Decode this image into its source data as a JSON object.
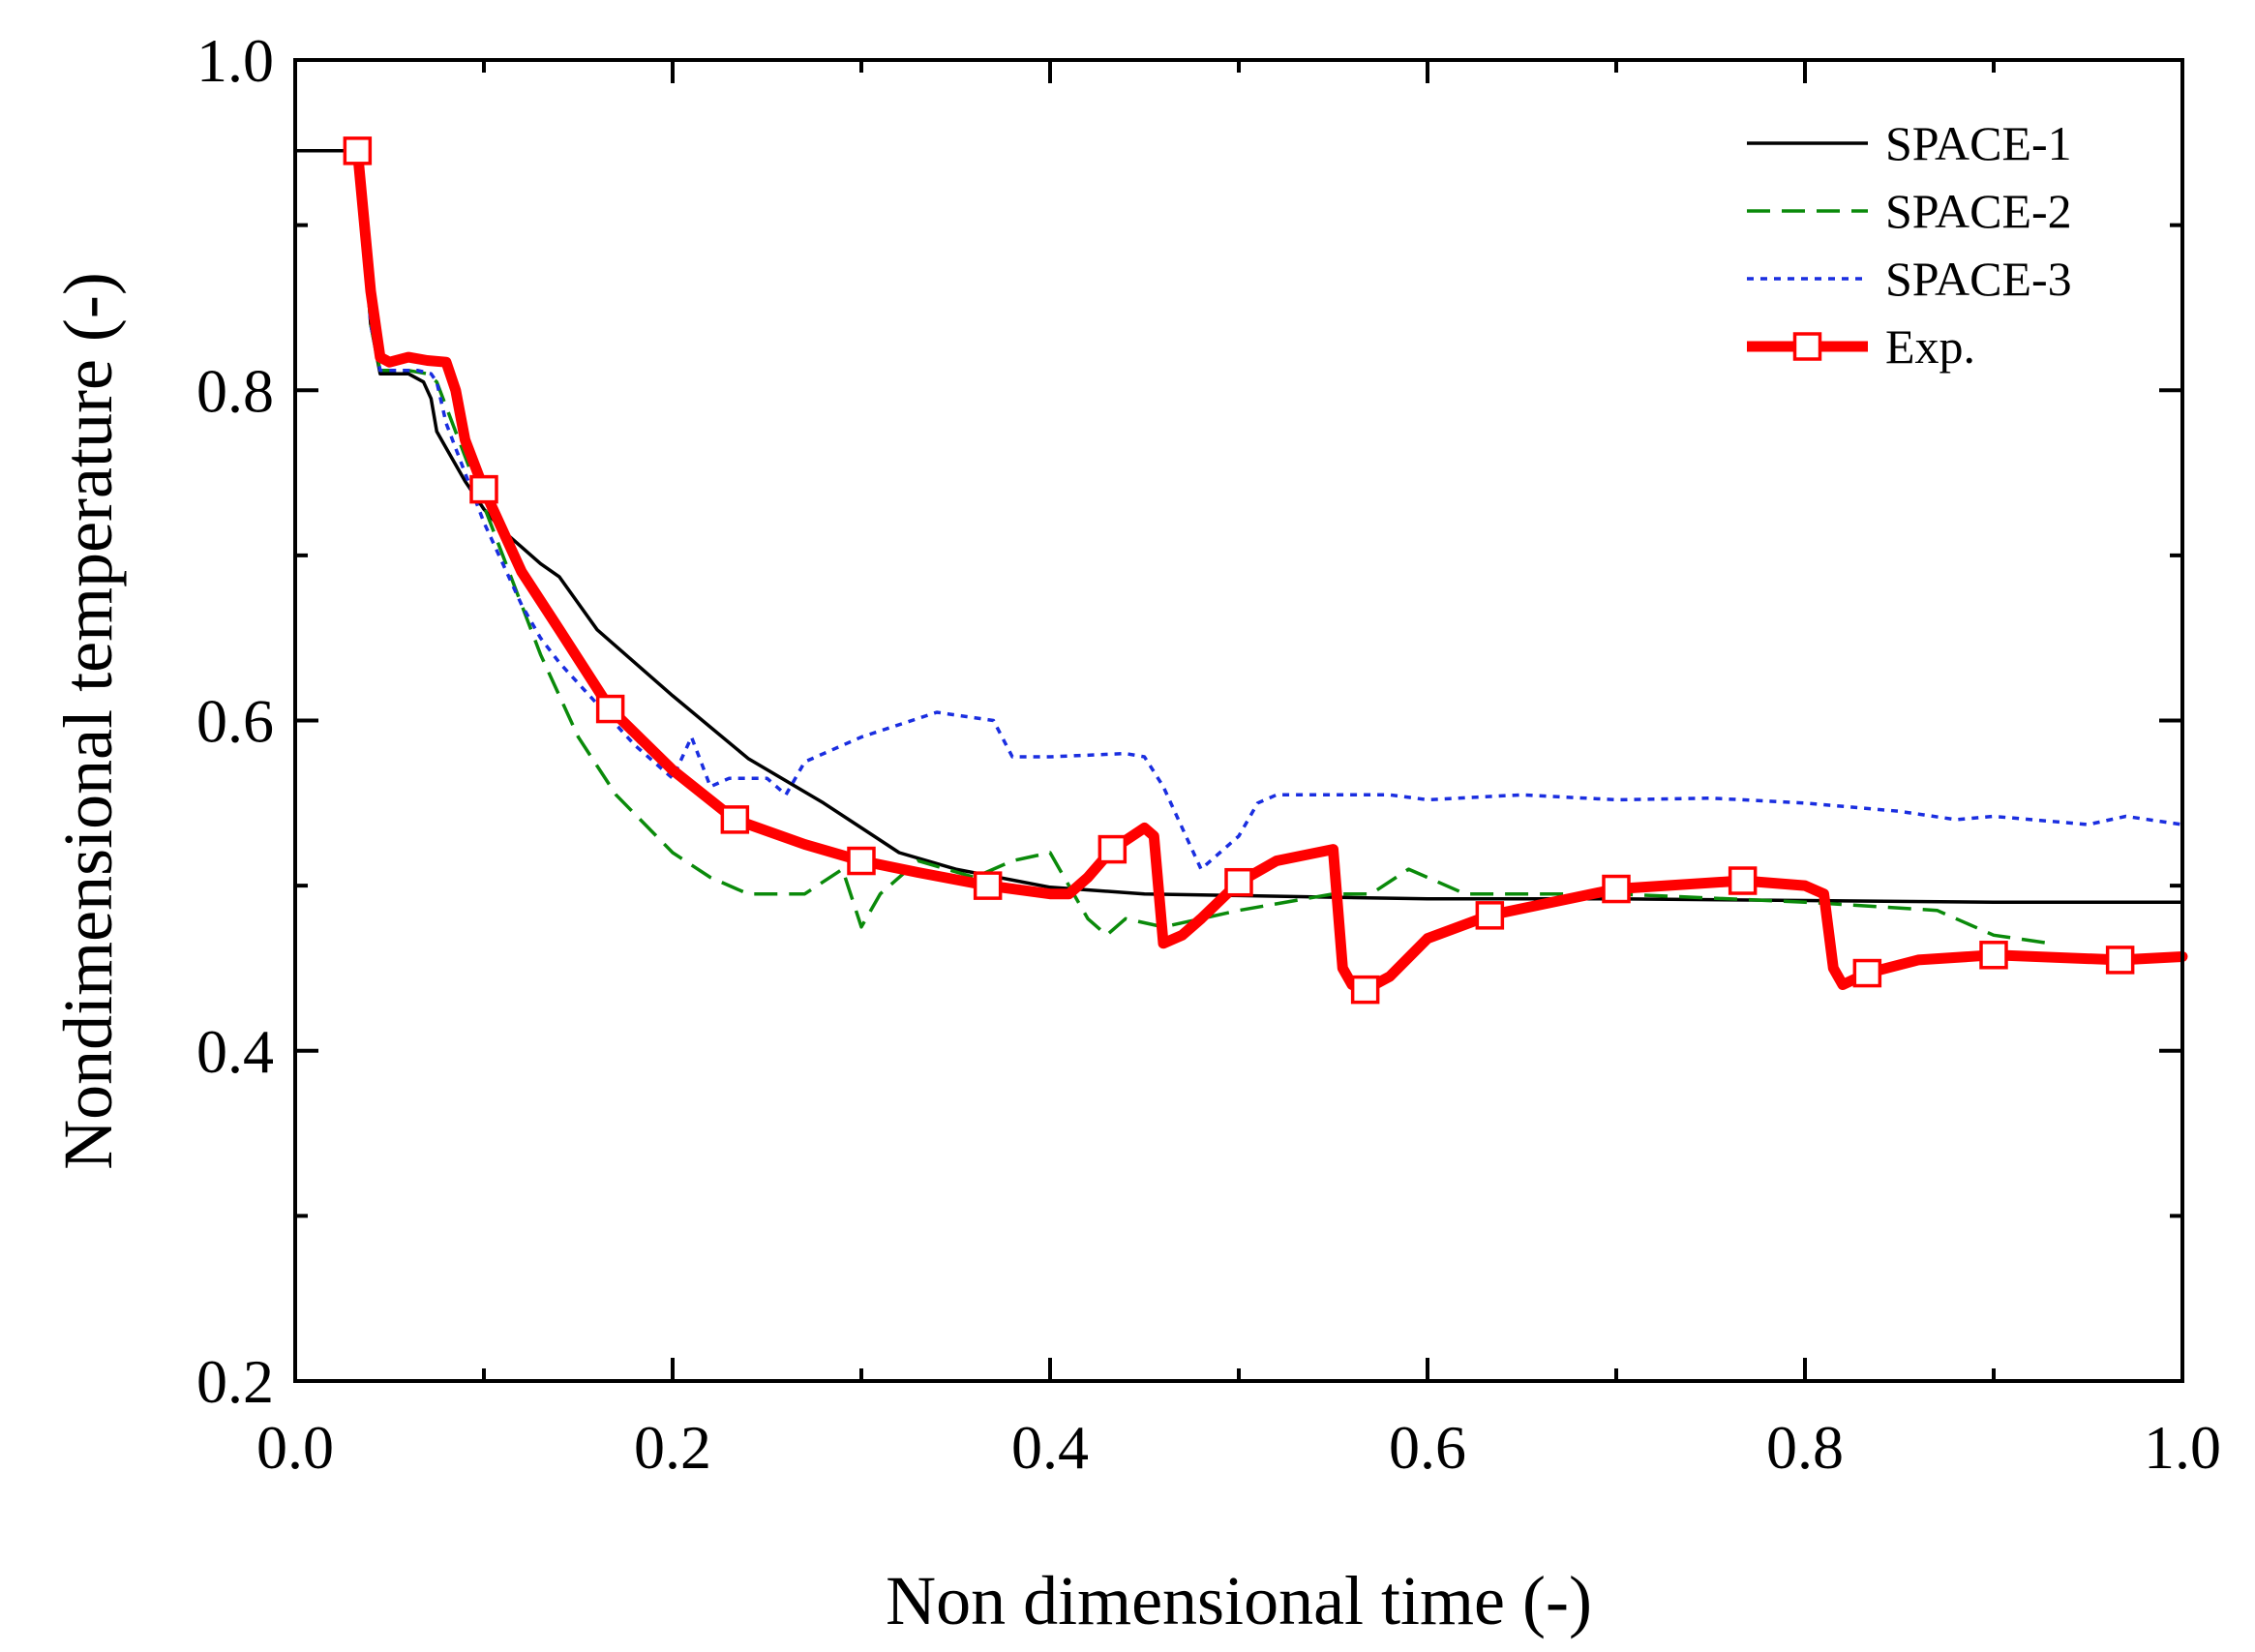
{
  "chart_data": {
    "type": "line",
    "title": "",
    "xlabel": "Non dimensional time (-)",
    "ylabel": "Nondimensional temperature (-)",
    "xlim": [
      0.0,
      1.0
    ],
    "ylim": [
      0.2,
      1.0
    ],
    "x_ticks": [
      0.0,
      0.2,
      0.4,
      0.6,
      0.8,
      1.0
    ],
    "x_tick_labels": [
      "0.0",
      "0.2",
      "0.4",
      "0.6",
      "0.8",
      "1.0"
    ],
    "y_ticks": [
      0.2,
      0.4,
      0.6,
      0.8,
      1.0
    ],
    "y_tick_labels": [
      "0.2",
      "0.4",
      "0.6",
      "0.8",
      "1.0"
    ],
    "grid": false,
    "legend_position": "top-right",
    "series": [
      {
        "name": "SPACE-1",
        "color": "#000000",
        "style": "solid",
        "x": [
          0.0,
          0.033,
          0.04,
          0.045,
          0.05,
          0.06,
          0.068,
          0.072,
          0.075,
          0.08,
          0.09,
          0.1,
          0.11,
          0.12,
          0.13,
          0.14,
          0.16,
          0.2,
          0.24,
          0.28,
          0.3,
          0.32,
          0.35,
          0.4,
          0.45,
          0.5,
          0.6,
          0.7,
          0.8,
          0.9,
          1.0
        ],
        "y": [
          0.945,
          0.945,
          0.84,
          0.81,
          0.81,
          0.81,
          0.805,
          0.795,
          0.775,
          0.765,
          0.745,
          0.728,
          0.715,
          0.705,
          0.695,
          0.687,
          0.655,
          0.615,
          0.577,
          0.55,
          0.535,
          0.52,
          0.51,
          0.499,
          0.495,
          0.494,
          0.492,
          0.492,
          0.491,
          0.49,
          0.49
        ]
      },
      {
        "name": "SPACE-2",
        "color": "#0a8a0a",
        "style": "dashed",
        "x": [
          0.033,
          0.04,
          0.045,
          0.05,
          0.06,
          0.07,
          0.075,
          0.08,
          0.09,
          0.1,
          0.11,
          0.12,
          0.13,
          0.15,
          0.17,
          0.2,
          0.22,
          0.24,
          0.27,
          0.29,
          0.3,
          0.31,
          0.33,
          0.36,
          0.38,
          0.4,
          0.42,
          0.43,
          0.44,
          0.46,
          0.48,
          0.5,
          0.55,
          0.57,
          0.59,
          0.62,
          0.7,
          0.8,
          0.87,
          0.9,
          0.93
        ],
        "y": [
          0.945,
          0.84,
          0.812,
          0.812,
          0.812,
          0.81,
          0.805,
          0.79,
          0.76,
          0.73,
          0.7,
          0.67,
          0.64,
          0.59,
          0.555,
          0.52,
          0.505,
          0.495,
          0.495,
          0.51,
          0.475,
          0.495,
          0.515,
          0.505,
          0.515,
          0.52,
          0.48,
          0.47,
          0.48,
          0.475,
          0.48,
          0.485,
          0.495,
          0.495,
          0.51,
          0.495,
          0.495,
          0.49,
          0.485,
          0.47,
          0.465
        ]
      },
      {
        "name": "SPACE-3",
        "color": "#1a2ee0",
        "style": "dotted",
        "x": [
          0.033,
          0.04,
          0.045,
          0.05,
          0.065,
          0.072,
          0.075,
          0.08,
          0.09,
          0.1,
          0.11,
          0.12,
          0.13,
          0.14,
          0.16,
          0.18,
          0.2,
          0.21,
          0.215,
          0.22,
          0.23,
          0.25,
          0.26,
          0.27,
          0.3,
          0.34,
          0.37,
          0.38,
          0.4,
          0.44,
          0.45,
          0.46,
          0.48,
          0.49,
          0.5,
          0.51,
          0.52,
          0.55,
          0.58,
          0.6,
          0.65,
          0.7,
          0.75,
          0.8,
          0.85,
          0.88,
          0.9,
          0.95,
          0.97,
          1.0
        ],
        "y": [
          0.945,
          0.84,
          0.812,
          0.812,
          0.812,
          0.81,
          0.805,
          0.78,
          0.75,
          0.72,
          0.695,
          0.67,
          0.65,
          0.635,
          0.61,
          0.585,
          0.565,
          0.59,
          0.575,
          0.56,
          0.565,
          0.565,
          0.555,
          0.575,
          0.59,
          0.605,
          0.6,
          0.578,
          0.578,
          0.58,
          0.578,
          0.56,
          0.51,
          0.52,
          0.53,
          0.55,
          0.555,
          0.555,
          0.555,
          0.552,
          0.555,
          0.552,
          0.553,
          0.55,
          0.545,
          0.54,
          0.542,
          0.537,
          0.542,
          0.537
        ]
      },
      {
        "name": "Exp.",
        "color": "#ff0000",
        "style": "solid-thick",
        "marker": "square",
        "x": [
          0.033,
          0.04,
          0.045,
          0.05,
          0.06,
          0.07,
          0.08,
          0.085,
          0.09,
          0.1,
          0.11,
          0.12,
          0.14,
          0.167,
          0.2,
          0.233,
          0.27,
          0.3,
          0.33,
          0.367,
          0.4,
          0.41,
          0.42,
          0.433,
          0.45,
          0.455,
          0.46,
          0.47,
          0.48,
          0.5,
          0.52,
          0.55,
          0.555,
          0.56,
          0.567,
          0.58,
          0.6,
          0.633,
          0.7,
          0.767,
          0.8,
          0.81,
          0.815,
          0.82,
          0.833,
          0.86,
          0.9,
          0.967,
          1.0
        ],
        "y": [
          0.945,
          0.86,
          0.82,
          0.817,
          0.82,
          0.818,
          0.817,
          0.8,
          0.77,
          0.74,
          0.715,
          0.69,
          0.655,
          0.607,
          0.57,
          0.54,
          0.525,
          0.515,
          0.508,
          0.5,
          0.495,
          0.495,
          0.505,
          0.522,
          0.535,
          0.53,
          0.465,
          0.47,
          0.48,
          0.502,
          0.515,
          0.522,
          0.45,
          0.44,
          0.437,
          0.445,
          0.468,
          0.482,
          0.498,
          0.503,
          0.5,
          0.495,
          0.45,
          0.44,
          0.447,
          0.455,
          0.458,
          0.455,
          0.457
        ],
        "marker_x": [
          0.033,
          0.1,
          0.167,
          0.233,
          0.3,
          0.367,
          0.433,
          0.5,
          0.567,
          0.633,
          0.7,
          0.767,
          0.833,
          0.9,
          0.967
        ],
        "marker_y": [
          0.945,
          0.74,
          0.607,
          0.54,
          0.515,
          0.5,
          0.522,
          0.502,
          0.437,
          0.482,
          0.498,
          0.503,
          0.447,
          0.458,
          0.455
        ]
      }
    ]
  }
}
